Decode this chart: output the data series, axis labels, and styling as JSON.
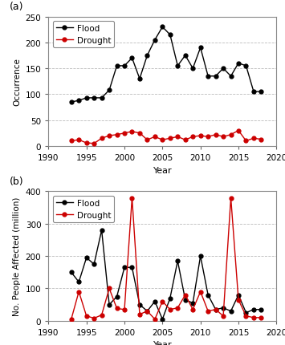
{
  "years": [
    1993,
    1994,
    1995,
    1996,
    1997,
    1998,
    1999,
    2000,
    2001,
    2002,
    2003,
    2004,
    2005,
    2006,
    2007,
    2008,
    2009,
    2010,
    2011,
    2012,
    2013,
    2014,
    2015,
    2016,
    2017,
    2018
  ],
  "flood_occurrence": [
    85,
    88,
    93,
    93,
    93,
    108,
    155,
    155,
    170,
    130,
    175,
    205,
    230,
    215,
    155,
    175,
    150,
    190,
    135,
    135,
    150,
    135,
    160,
    155,
    105,
    105
  ],
  "drought_occurrence": [
    10,
    12,
    6,
    5,
    15,
    20,
    22,
    25,
    28,
    25,
    12,
    18,
    12,
    15,
    18,
    12,
    18,
    20,
    18,
    22,
    18,
    22,
    30,
    10,
    15,
    13
  ],
  "flood_affected": [
    150,
    120,
    195,
    175,
    280,
    50,
    75,
    165,
    165,
    50,
    30,
    60,
    5,
    70,
    185,
    65,
    55,
    200,
    80,
    35,
    40,
    30,
    80,
    25,
    35,
    35
  ],
  "drought_affected": [
    5,
    90,
    15,
    8,
    18,
    100,
    38,
    35,
    380,
    20,
    30,
    5,
    60,
    35,
    40,
    80,
    35,
    90,
    30,
    35,
    15,
    380,
    65,
    15,
    10,
    10
  ],
  "flood_color": "#000000",
  "drought_color": "#cc0000",
  "panel_a_ylabel": "Occurrence",
  "panel_b_ylabel": "No. People Affected (million)",
  "xlabel": "Year",
  "panel_a_label": "(a)",
  "panel_b_label": "(b)",
  "xlim": [
    1990,
    2020
  ],
  "panel_a_ylim": [
    0,
    250
  ],
  "panel_b_ylim": [
    0,
    400
  ],
  "panel_a_yticks": [
    0,
    50,
    100,
    150,
    200,
    250
  ],
  "panel_b_yticks": [
    0,
    100,
    200,
    300,
    400
  ],
  "xticks": [
    1990,
    1995,
    2000,
    2005,
    2010,
    2015,
    2020
  ],
  "bg_color": "#ffffff",
  "grid_color": "#aaaaaa",
  "legend_flood": "Flood",
  "legend_drought": "Drought",
  "marker": "o",
  "markersize": 3.5,
  "linewidth": 1.0
}
